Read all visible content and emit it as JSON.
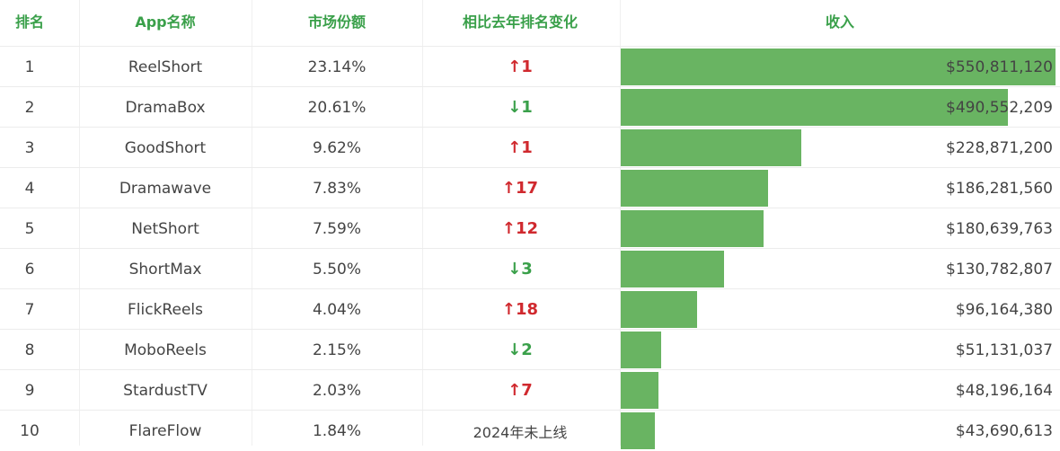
{
  "headers": {
    "rank": "排名",
    "app": "App名称",
    "share": "市场份额",
    "change": "相比去年排名变化",
    "revenue": "收入"
  },
  "colors": {
    "header_text": "#3aa04a",
    "bar": "#69b462",
    "up": "#d0292e",
    "down": "#3aa04a"
  },
  "chart_data": {
    "type": "table",
    "columns": [
      "排名",
      "App名称",
      "市场份额",
      "相比去年排名变化",
      "收入"
    ],
    "bar_column": "收入",
    "rows": [
      {
        "rank": "1",
        "app": "ReelShort",
        "share": "23.14%",
        "change_dir": "up",
        "change": "↑1",
        "revenue_label": "$550,811,120",
        "revenue": 550811120
      },
      {
        "rank": "2",
        "app": "DramaBox",
        "share": "20.61%",
        "change_dir": "down",
        "change": "↓1",
        "revenue_label": "$490,552,209",
        "revenue": 490552209
      },
      {
        "rank": "3",
        "app": "GoodShort",
        "share": "9.62%",
        "change_dir": "up",
        "change": "↑1",
        "revenue_label": "$228,871,200",
        "revenue": 228871200
      },
      {
        "rank": "4",
        "app": "Dramawave",
        "share": "7.83%",
        "change_dir": "up",
        "change": "↑17",
        "revenue_label": "$186,281,560",
        "revenue": 186281560
      },
      {
        "rank": "5",
        "app": "NetShort",
        "share": "7.59%",
        "change_dir": "up",
        "change": "↑12",
        "revenue_label": "$180,639,763",
        "revenue": 180639763
      },
      {
        "rank": "6",
        "app": "ShortMax",
        "share": "5.50%",
        "change_dir": "down",
        "change": "↓3",
        "revenue_label": "$130,782,807",
        "revenue": 130782807
      },
      {
        "rank": "7",
        "app": "FlickReels",
        "share": "4.04%",
        "change_dir": "up",
        "change": "↑18",
        "revenue_label": "$96,164,380",
        "revenue": 96164380
      },
      {
        "rank": "8",
        "app": "MoboReels",
        "share": "2.15%",
        "change_dir": "down",
        "change": "↓2",
        "revenue_label": "$51,131,037",
        "revenue": 51131037
      },
      {
        "rank": "9",
        "app": "StardustTV",
        "share": "2.03%",
        "change_dir": "up",
        "change": "↑7",
        "revenue_label": "$48,196,164",
        "revenue": 48196164
      },
      {
        "rank": "10",
        "app": "FlareFlow",
        "share": "1.84%",
        "change_dir": "neutral",
        "change": "2024年未上线",
        "revenue_label": "$43,690,613",
        "revenue": 43690613
      }
    ]
  }
}
